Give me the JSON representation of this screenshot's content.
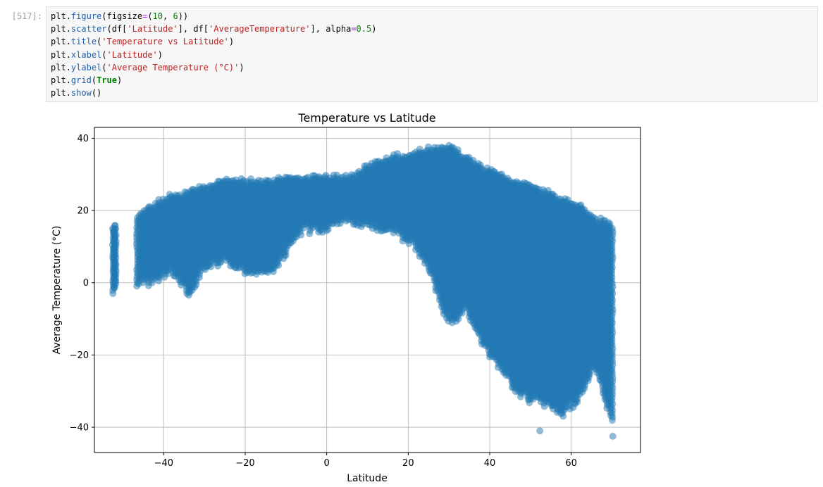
{
  "cell": {
    "prompt": "[517]:",
    "lines": [
      [
        {
          "t": "var",
          "v": "plt"
        },
        {
          "t": "plain",
          "v": "."
        },
        {
          "t": "attr",
          "v": "figure"
        },
        {
          "t": "plain",
          "v": "(figsize"
        },
        {
          "t": "op",
          "v": "="
        },
        {
          "t": "plain",
          "v": "("
        },
        {
          "t": "num",
          "v": "10"
        },
        {
          "t": "plain",
          "v": ", "
        },
        {
          "t": "num",
          "v": "6"
        },
        {
          "t": "plain",
          "v": "))"
        }
      ],
      [
        {
          "t": "var",
          "v": "plt"
        },
        {
          "t": "plain",
          "v": "."
        },
        {
          "t": "attr",
          "v": "scatter"
        },
        {
          "t": "plain",
          "v": "(df["
        },
        {
          "t": "str",
          "v": "'Latitude'"
        },
        {
          "t": "plain",
          "v": "], df["
        },
        {
          "t": "str",
          "v": "'AverageTemperature'"
        },
        {
          "t": "plain",
          "v": "], alpha"
        },
        {
          "t": "op",
          "v": "="
        },
        {
          "t": "num",
          "v": "0.5"
        },
        {
          "t": "plain",
          "v": ")"
        }
      ],
      [
        {
          "t": "var",
          "v": "plt"
        },
        {
          "t": "plain",
          "v": "."
        },
        {
          "t": "attr",
          "v": "title"
        },
        {
          "t": "plain",
          "v": "("
        },
        {
          "t": "str",
          "v": "'Temperature vs Latitude'"
        },
        {
          "t": "plain",
          "v": ")"
        }
      ],
      [
        {
          "t": "var",
          "v": "plt"
        },
        {
          "t": "plain",
          "v": "."
        },
        {
          "t": "attr",
          "v": "xlabel"
        },
        {
          "t": "plain",
          "v": "("
        },
        {
          "t": "str",
          "v": "'Latitude'"
        },
        {
          "t": "plain",
          "v": ")"
        }
      ],
      [
        {
          "t": "var",
          "v": "plt"
        },
        {
          "t": "plain",
          "v": "."
        },
        {
          "t": "attr",
          "v": "ylabel"
        },
        {
          "t": "plain",
          "v": "("
        },
        {
          "t": "str",
          "v": "'Average Temperature (°C)'"
        },
        {
          "t": "plain",
          "v": ")"
        }
      ],
      [
        {
          "t": "var",
          "v": "plt"
        },
        {
          "t": "plain",
          "v": "."
        },
        {
          "t": "attr",
          "v": "grid"
        },
        {
          "t": "plain",
          "v": "("
        },
        {
          "t": "kw",
          "v": "True"
        },
        {
          "t": "plain",
          "v": ")"
        }
      ],
      [
        {
          "t": "var",
          "v": "plt"
        },
        {
          "t": "plain",
          "v": "."
        },
        {
          "t": "attr",
          "v": "show"
        },
        {
          "t": "plain",
          "v": "()"
        }
      ]
    ]
  },
  "chart_data": {
    "type": "scatter",
    "title": "Temperature vs Latitude",
    "xlabel": "Latitude",
    "ylabel": "Average Temperature (°C)",
    "xlim": [
      -57,
      77
    ],
    "ylim": [
      -47,
      43
    ],
    "xticks": [
      -40,
      -20,
      0,
      20,
      40,
      60
    ],
    "yticks": [
      -40,
      -20,
      0,
      20,
      40
    ],
    "xtick_labels": [
      "−40",
      "−20",
      "0",
      "20",
      "40",
      "60"
    ],
    "ytick_labels": [
      "−40",
      "−20",
      "0",
      "20",
      "40"
    ],
    "grid": true,
    "alpha": 0.5,
    "color": "#1f77b4",
    "envelope": [
      {
        "x": -52,
        "y_min": -3,
        "y_max": 17
      },
      {
        "x": -46,
        "y_min": -1,
        "y_max": 20
      },
      {
        "x": -42,
        "y_min": -1,
        "y_max": 23
      },
      {
        "x": -38,
        "y_min": 2,
        "y_max": 25
      },
      {
        "x": -34,
        "y_min": -4,
        "y_max": 26
      },
      {
        "x": -30,
        "y_min": 3,
        "y_max": 28
      },
      {
        "x": -26,
        "y_min": 5,
        "y_max": 29
      },
      {
        "x": -22,
        "y_min": 3,
        "y_max": 29
      },
      {
        "x": -18,
        "y_min": 2,
        "y_max": 29
      },
      {
        "x": -14,
        "y_min": 1,
        "y_max": 29
      },
      {
        "x": -10,
        "y_min": 7,
        "y_max": 30
      },
      {
        "x": -6,
        "y_min": 14,
        "y_max": 30
      },
      {
        "x": -2,
        "y_min": 13,
        "y_max": 30
      },
      {
        "x": 2,
        "y_min": 15,
        "y_max": 30
      },
      {
        "x": 6,
        "y_min": 16,
        "y_max": 30
      },
      {
        "x": 10,
        "y_min": 15,
        "y_max": 33
      },
      {
        "x": 14,
        "y_min": 14,
        "y_max": 35
      },
      {
        "x": 18,
        "y_min": 12,
        "y_max": 36
      },
      {
        "x": 22,
        "y_min": 9,
        "y_max": 37
      },
      {
        "x": 26,
        "y_min": 0,
        "y_max": 38
      },
      {
        "x": 30,
        "y_min": -13,
        "y_max": 39
      },
      {
        "x": 34,
        "y_min": -8,
        "y_max": 36
      },
      {
        "x": 38,
        "y_min": -18,
        "y_max": 33
      },
      {
        "x": 42,
        "y_min": -24,
        "y_max": 31
      },
      {
        "x": 46,
        "y_min": -30,
        "y_max": 29
      },
      {
        "x": 50,
        "y_min": -34,
        "y_max": 28
      },
      {
        "x": 54,
        "y_min": -35,
        "y_max": 26
      },
      {
        "x": 58,
        "y_min": -37,
        "y_max": 24
      },
      {
        "x": 62,
        "y_min": -33,
        "y_max": 22
      },
      {
        "x": 66,
        "y_min": -24,
        "y_max": 19
      },
      {
        "x": 70,
        "y_min": -40,
        "y_max": 17
      }
    ],
    "outliers": [
      {
        "x": 52.3,
        "y": -41
      },
      {
        "x": 70.2,
        "y": -42.5
      },
      {
        "x": 45.5,
        "y": -29
      },
      {
        "x": 60.5,
        "y": -34.5
      },
      {
        "x": 55.5,
        "y": -34
      }
    ]
  }
}
